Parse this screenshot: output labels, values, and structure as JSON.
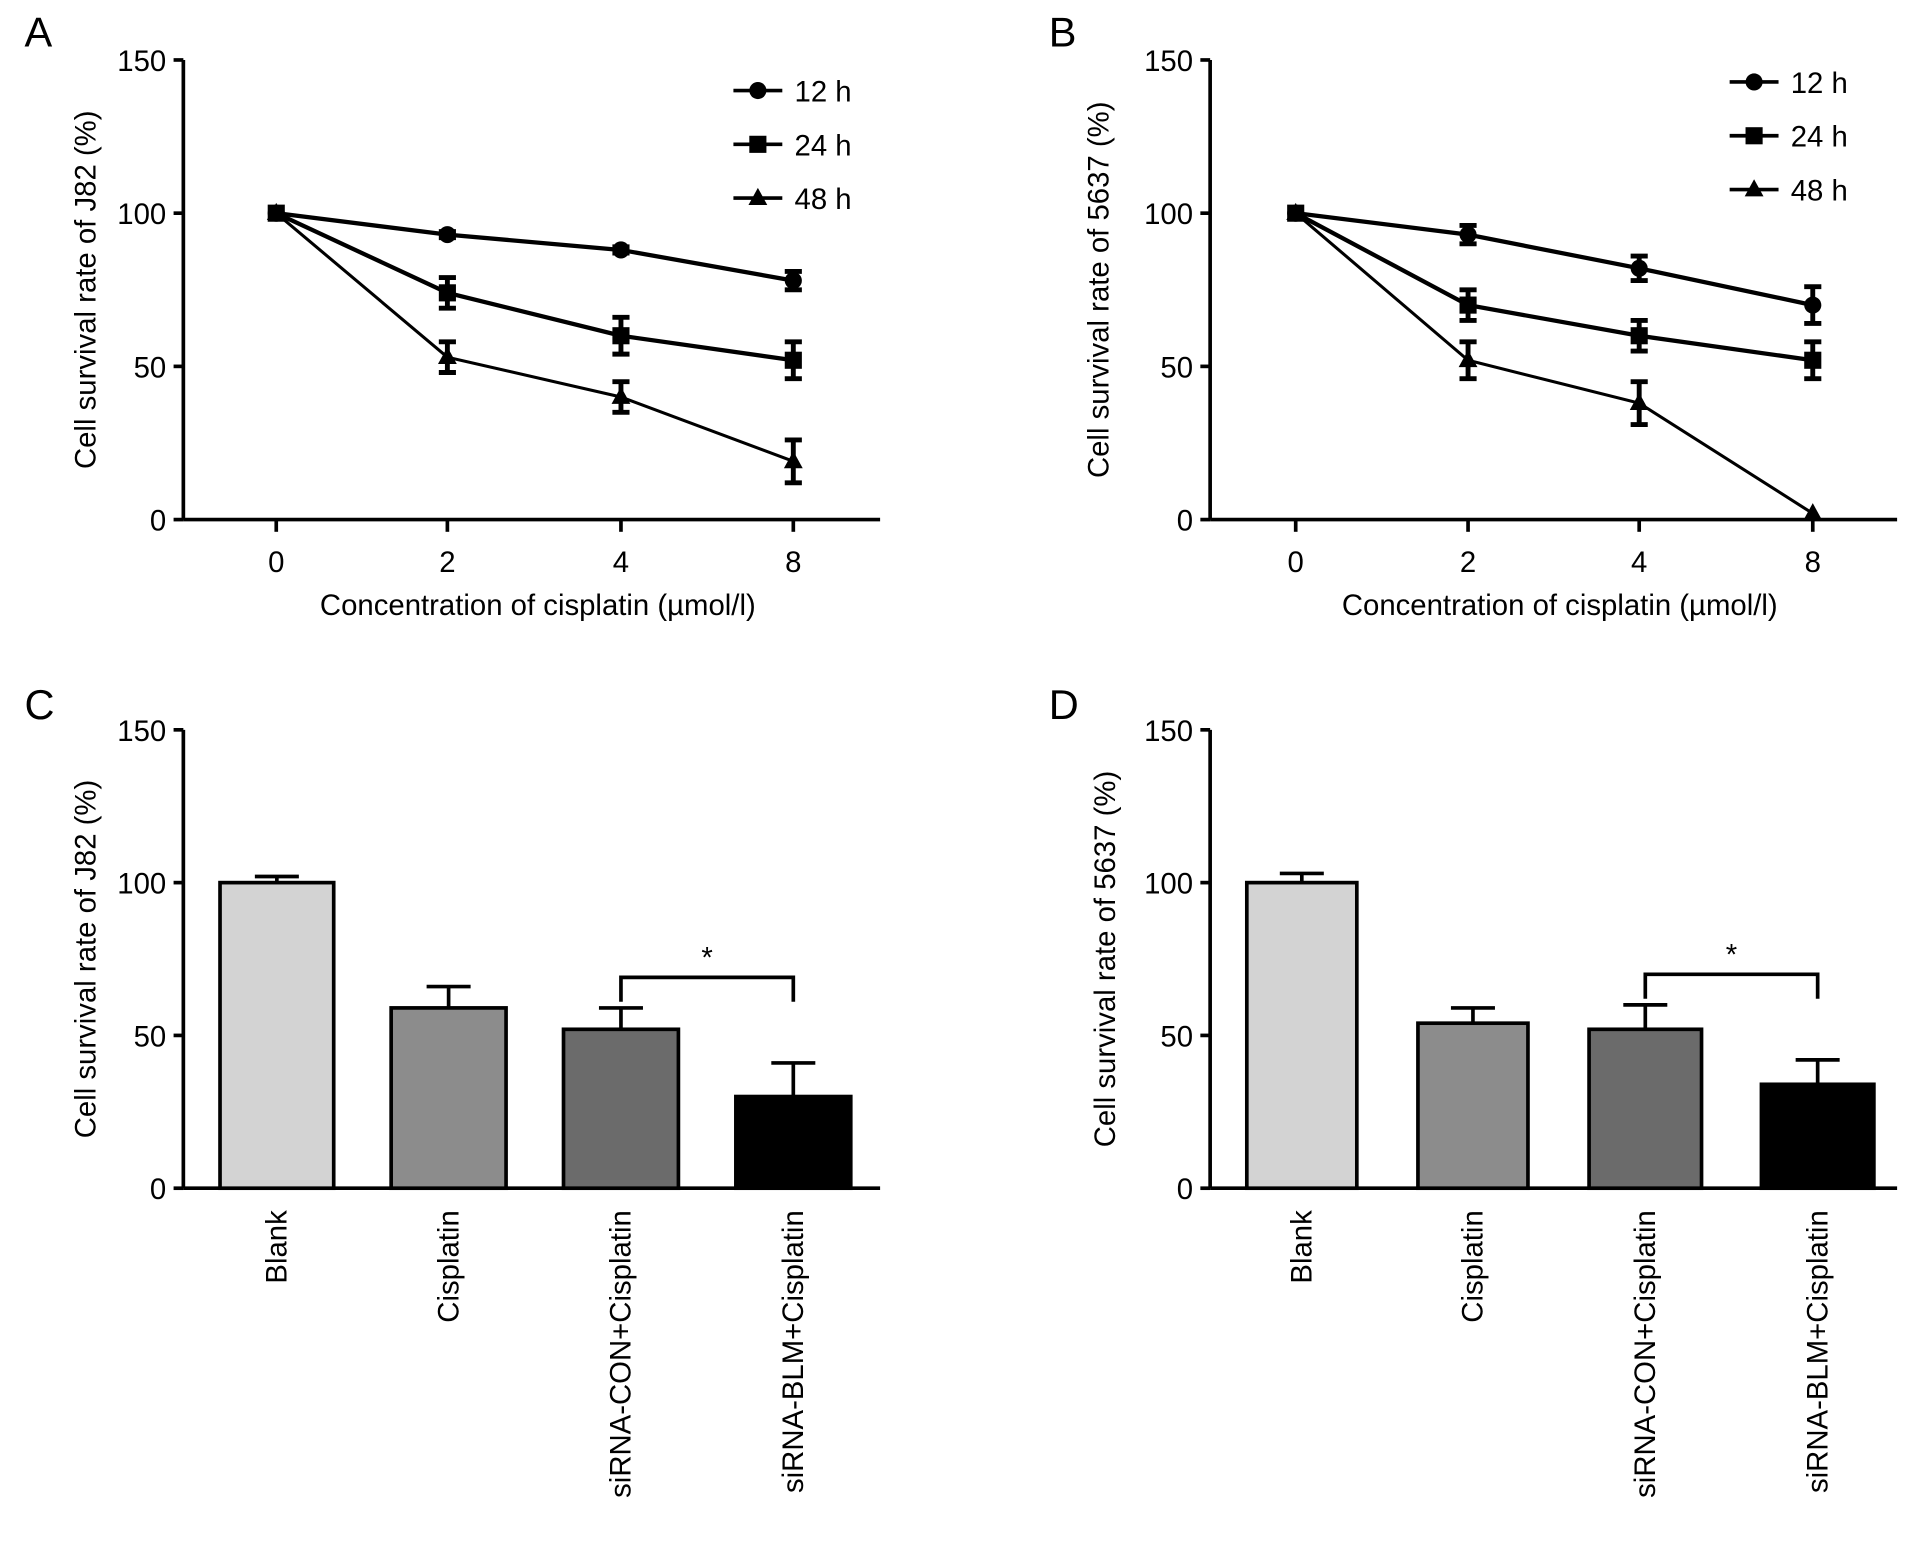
{
  "chart_data": [
    {
      "panel": "A",
      "type": "line",
      "ylabel": "Cell survival rate of J82 (%)",
      "xlabel": "Concentration of cisplatin (µmol/l)",
      "categories": [
        "0",
        "2",
        "4",
        "8"
      ],
      "ylim": [
        0,
        150
      ],
      "yticks": [
        "0",
        "50",
        "100",
        "150"
      ],
      "legend_position": "top-right",
      "series": [
        {
          "name": "12 h",
          "marker": "circle",
          "values": [
            100,
            93,
            88,
            78
          ],
          "errors": [
            0,
            1,
            1,
            3
          ]
        },
        {
          "name": "24 h",
          "marker": "square",
          "values": [
            100,
            74,
            60,
            52
          ],
          "errors": [
            0,
            5,
            6,
            6
          ]
        },
        {
          "name": "48 h",
          "marker": "triangle",
          "values": [
            100,
            53,
            40,
            19
          ],
          "errors": [
            0,
            5,
            5,
            7
          ]
        }
      ]
    },
    {
      "panel": "B",
      "type": "line",
      "ylabel": "Cell survival rate of 5637 (%)",
      "xlabel": "Concentration of cisplatin (µmol/l)",
      "categories": [
        "0",
        "2",
        "4",
        "8"
      ],
      "ylim": [
        0,
        150
      ],
      "yticks": [
        "0",
        "50",
        "100",
        "150"
      ],
      "legend_position": "top-right",
      "series": [
        {
          "name": "12 h",
          "marker": "circle",
          "values": [
            100,
            93,
            82,
            70
          ],
          "errors": [
            0,
            3,
            4,
            6
          ]
        },
        {
          "name": "24 h",
          "marker": "square",
          "values": [
            100,
            70,
            60,
            52
          ],
          "errors": [
            0,
            5,
            5,
            6
          ]
        },
        {
          "name": "48 h",
          "marker": "triangle",
          "values": [
            100,
            52,
            38,
            2
          ],
          "errors": [
            0,
            6,
            7,
            0
          ]
        }
      ]
    },
    {
      "panel": "C",
      "type": "bar",
      "ylabel": "Cell survival rate of J82 (%)",
      "categories": [
        "Blank",
        "Cisplatin",
        "siRNA-CON+Cisplatin",
        "siRNA-BLM+Cisplatin"
      ],
      "values": [
        100,
        59,
        52,
        30
      ],
      "errors": [
        2,
        7,
        7,
        11
      ],
      "colors": [
        "#d3d3d3",
        "#8c8c8c",
        "#6b6b6b",
        "#000000"
      ],
      "ylim": [
        0,
        150
      ],
      "yticks": [
        "0",
        "50",
        "100",
        "150"
      ],
      "significance": {
        "between": [
          2,
          3
        ],
        "label": "*"
      }
    },
    {
      "panel": "D",
      "type": "bar",
      "ylabel": "Cell survival rate of 5637 (%)",
      "categories": [
        "Blank",
        "Cisplatin",
        "siRNA-CON+Cisplatin",
        "siRNA-BLM+Cisplatin"
      ],
      "values": [
        100,
        54,
        52,
        34
      ],
      "errors": [
        3,
        5,
        8,
        8
      ],
      "colors": [
        "#d3d3d3",
        "#8c8c8c",
        "#6b6b6b",
        "#000000"
      ],
      "ylim": [
        0,
        150
      ],
      "yticks": [
        "0",
        "50",
        "100",
        "150"
      ],
      "significance": {
        "between": [
          2,
          3
        ],
        "label": "*"
      }
    }
  ]
}
